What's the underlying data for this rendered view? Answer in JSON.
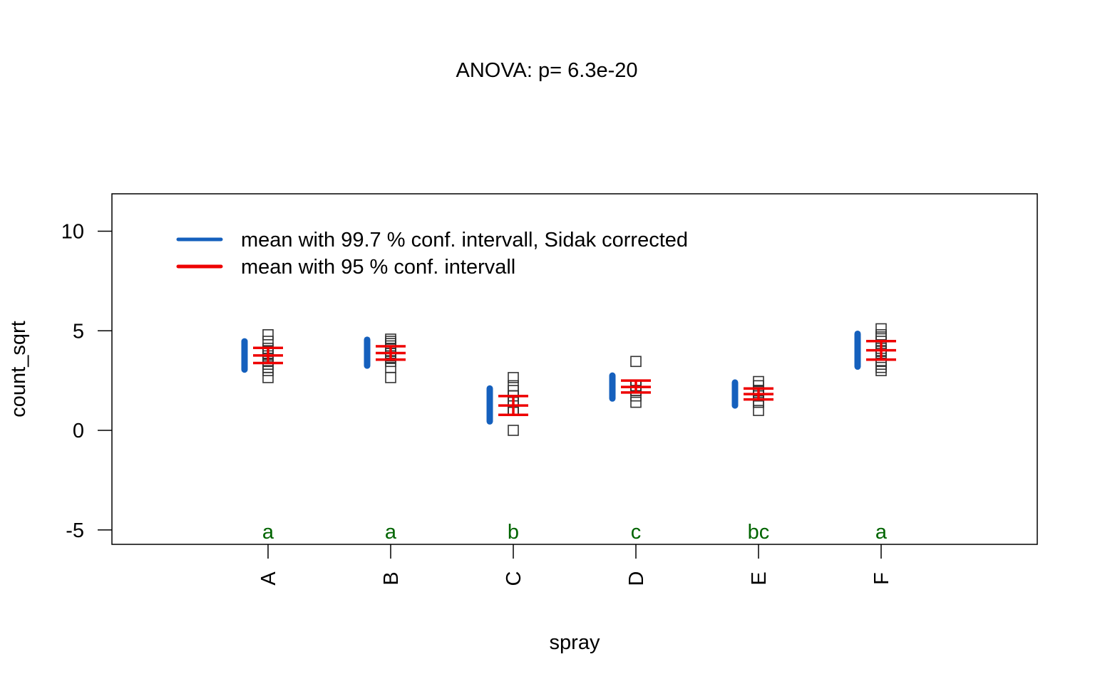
{
  "chart_data": {
    "type": "scatter",
    "title": "ANOVA:  p= 6.3e-20",
    "xlabel": "spray",
    "ylabel": "count_sqrt",
    "ylim": [
      -5.7,
      12
    ],
    "y_ticks": [
      -5,
      0,
      5,
      10
    ],
    "y_tick_labels": [
      "-5",
      "0",
      "5",
      "10"
    ],
    "categories": [
      "A",
      "B",
      "C",
      "D",
      "E",
      "F"
    ],
    "legend": {
      "position": "top-left",
      "entries": [
        {
          "label": "mean with 99.7 % conf. intervall, Sidak corrected",
          "color": "#1560BD"
        },
        {
          "label": "mean with 95 % conf. intervall",
          "color": "#EE0000"
        }
      ]
    },
    "group_letters": [
      "a",
      "a",
      "b",
      "c",
      "bc",
      "a"
    ],
    "letter_color": "#006400",
    "point_color": "#333333",
    "groups": [
      {
        "category": "A",
        "mean": 3.76,
        "ci997": [
          3.05,
          4.47
        ],
        "ci95": [
          3.38,
          4.14
        ],
        "points": [
          2.65,
          3.0,
          3.16,
          3.32,
          3.46,
          3.61,
          3.74,
          3.87,
          4.0,
          4.12,
          4.47,
          4.8
        ]
      },
      {
        "category": "B",
        "mean": 3.88,
        "ci997": [
          3.25,
          4.55
        ],
        "ci95": [
          3.55,
          4.22
        ],
        "points": [
          2.65,
          3.16,
          3.46,
          3.61,
          3.74,
          3.87,
          4.0,
          4.12,
          4.24,
          4.36,
          4.47,
          4.58
        ]
      },
      {
        "category": "C",
        "mean": 1.25,
        "ci997": [
          0.45,
          2.1
        ],
        "ci95": [
          0.78,
          1.72
        ],
        "points": [
          0.0,
          1.0,
          1.0,
          1.0,
          1.41,
          1.41,
          1.41,
          1.73,
          1.73,
          2.0,
          2.24,
          2.65
        ]
      },
      {
        "category": "D",
        "mean": 2.18,
        "ci997": [
          1.6,
          2.75
        ],
        "ci95": [
          1.9,
          2.5
        ],
        "points": [
          1.41,
          1.73,
          2.0,
          2.0,
          2.24,
          2.24,
          2.24,
          2.24,
          2.24,
          2.24,
          2.24,
          3.46
        ]
      },
      {
        "category": "E",
        "mean": 1.82,
        "ci997": [
          1.25,
          2.4
        ],
        "ci95": [
          1.55,
          2.1
        ],
        "points": [
          1.0,
          1.41,
          1.41,
          1.73,
          1.73,
          1.73,
          1.73,
          2.0,
          2.0,
          2.0,
          2.24,
          2.45
        ]
      },
      {
        "category": "F",
        "mean": 4.02,
        "ci997": [
          3.2,
          4.85
        ],
        "ci95": [
          3.55,
          4.48
        ],
        "points": [
          3.0,
          3.16,
          3.32,
          3.46,
          3.87,
          4.0,
          4.0,
          4.12,
          4.47,
          4.69,
          4.8,
          5.1
        ]
      }
    ]
  }
}
